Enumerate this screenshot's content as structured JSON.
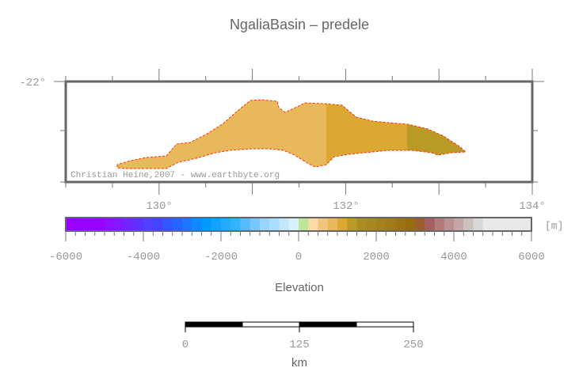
{
  "title": "NgaliaBasin – predele",
  "map": {
    "lat_label": "-22°",
    "lon_labels": [
      "130°",
      "132°",
      "134°"
    ],
    "credit": "Christian Heine,2007 - www.earthbyte.org",
    "basin_colors": [
      "#e8b95a",
      "#dba834",
      "#b99a26"
    ],
    "outline_color": "#ff3300"
  },
  "colorbar": {
    "unit": "[m]",
    "tick_labels": [
      "-6000",
      "-4000",
      "-2000",
      "0",
      "2000",
      "4000",
      "6000"
    ],
    "range": [
      -6000,
      6000
    ],
    "label": "Elevation",
    "colors": [
      "#9900ff",
      "#9900ff",
      "#9900ff",
      "#9900ff",
      "#8f0eff",
      "#7f1aff",
      "#6f26ff",
      "#5f33ff",
      "#5040ff",
      "#4444ff",
      "#3355ff",
      "#2266ff",
      "#1a77ff",
      "#1188ff",
      "#0099ff",
      "#11a3ff",
      "#22aaff",
      "#33b3ff",
      "#55bbff",
      "#77c7ff",
      "#99d3ff",
      "#aaddff",
      "#c2e8ff",
      "#d9f0ff",
      "#bde69a",
      "#fdd9a6",
      "#f2c57e",
      "#e8b95a",
      "#dba834",
      "#bb9a26",
      "#a89020",
      "#a6891c",
      "#a38219",
      "#9f7b15",
      "#9b7411",
      "#966d0d",
      "#9c5e2e",
      "#a46060",
      "#b07a7a",
      "#bb9090",
      "#c4a6a6",
      "#ccc0bf",
      "#d8d8d8",
      "#e8e8e8",
      "#e8e8e8",
      "#e8e8e8",
      "#e8e8e8",
      "#e8e8e8"
    ]
  },
  "scalebar": {
    "tick_labels": [
      "0",
      "125",
      "250"
    ],
    "unit": "km"
  }
}
